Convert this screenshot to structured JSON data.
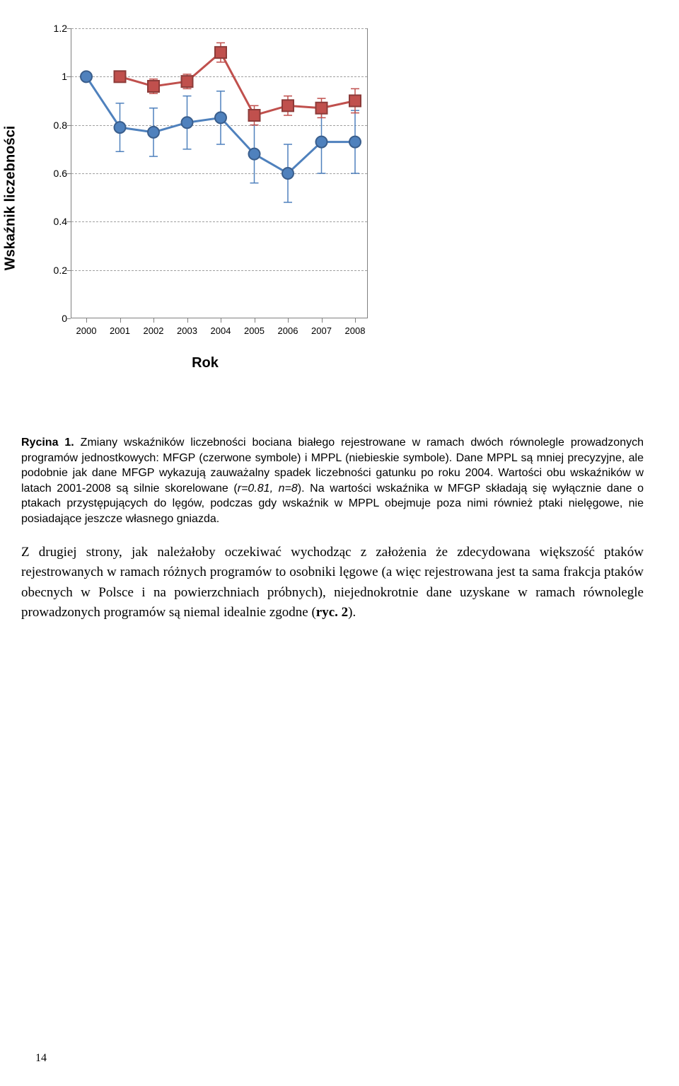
{
  "chart": {
    "type": "line-scatter-with-errorbars",
    "ylabel": "Wskaźnik liczebności",
    "xlabel": "Rok",
    "xlim": [
      2000,
      2008
    ],
    "ylim": [
      0,
      1.2
    ],
    "ytick_step": 0.2,
    "xtick_labels": [
      "2000",
      "2001",
      "2002",
      "2003",
      "2004",
      "2005",
      "2006",
      "2007",
      "2008"
    ],
    "ytick_labels": [
      "0",
      "0.2",
      "0.4",
      "0.6",
      "0.8",
      "1",
      "1.2"
    ],
    "gridline_values": [
      0.2,
      0.4,
      0.6,
      0.8,
      1.0,
      1.2
    ],
    "background_color": "#ffffff",
    "grid_color": "#a0a0a0",
    "axis_color": "#808080",
    "series": [
      {
        "name": "MPPL",
        "color_line": "#4f81bd",
        "color_marker_fill": "#4f81bd",
        "color_marker_stroke": "#3a5e8c",
        "marker": "circle",
        "marker_radius": 8,
        "line_width": 3,
        "y": [
          1.0,
          0.79,
          0.77,
          0.81,
          0.83,
          0.68,
          0.6,
          0.73,
          0.73
        ],
        "err": [
          0.0,
          0.1,
          0.1,
          0.11,
          0.11,
          0.12,
          0.12,
          0.13,
          0.13
        ]
      },
      {
        "name": "MFGP",
        "color_line": "#c0504d",
        "color_marker_fill": "#c0504d",
        "color_marker_stroke": "#8c3b39",
        "marker": "square",
        "marker_size": 16,
        "line_width": 3,
        "y": [
          null,
          1.0,
          0.96,
          0.98,
          1.1,
          0.84,
          0.88,
          0.87,
          0.9
        ],
        "err": [
          null,
          0.0,
          0.03,
          0.03,
          0.04,
          0.04,
          0.04,
          0.04,
          0.05
        ]
      }
    ]
  },
  "caption": {
    "prefix": "Rycina 1.",
    "text": " Zmiany wskaźników liczebności bociana białego rejestrowane w ramach dwóch równolegle prowadzonych programów jednostkowych: MFGP (czerwone symbole) i MPPL (niebieskie symbole). Dane MPPL są mniej precyzyjne, ale podobnie jak dane MFGP wykazują zauważalny spadek liczebności gatunku po roku 2004. Wartości obu wskaźników w latach 2001-2008 są silnie skorelowane (",
    "stat": "r=0.81, n=8",
    "text2": "). Na wartości wskaźnika w MFGP składają się wyłącznie dane o ptakach przystępujących do lęgów, podczas gdy wskaźnik w MPPL obejmuje poza nimi również ptaki nielęgowe, nie posiadające jeszcze własnego gniazda."
  },
  "body": {
    "para1_a": "Z drugiej strony, jak należałoby oczekiwać wychodząc z założenia że zdecydowana większość ptaków rejestrowanych w ramach różnych programów to osobniki lęgowe (a więc rejestrowana jest ta sama frakcja ptaków obecnych w Polsce i na powierzchniach próbnych), niejednokrotnie dane uzyskane w ramach równolegle prowadzonych programów są niemal idealnie zgodne (",
    "para1_ref": "ryc. 2",
    "para1_b": ")."
  },
  "page_number": "14"
}
